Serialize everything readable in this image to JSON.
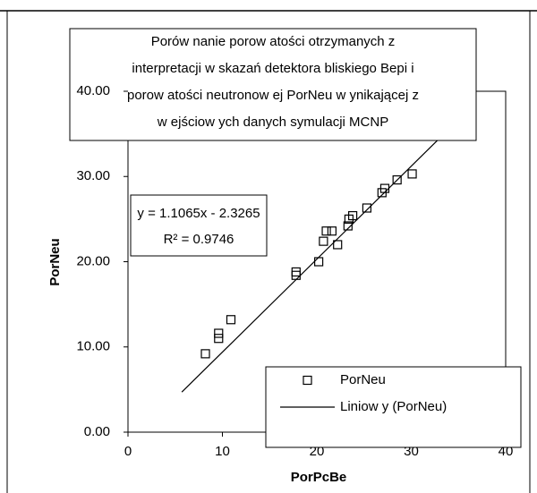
{
  "chart_data": {
    "type": "scatter",
    "title": [
      "Porów nanie porow atości otrzymanych z",
      "interpretacji w skazań detektora bliskiego Bepi i",
      "porow atości neutronow ej PorNeu w ynikającej z",
      "w ejściow ych danych symulacji MCNP"
    ],
    "x_label": "PorPcBe",
    "y_label": "PorNeu",
    "xlim": [
      0,
      40
    ],
    "xticks": [
      0,
      10,
      20,
      30,
      40
    ],
    "ylim": [
      0,
      40
    ],
    "yticks": [
      {
        "value": 0,
        "label": "0.00"
      },
      {
        "value": 10,
        "label": "10.00"
      },
      {
        "value": 20,
        "label": "20.00"
      },
      {
        "value": 30,
        "label": "30.00"
      },
      {
        "value": 40,
        "label": "40.00"
      }
    ],
    "series": [
      {
        "name": "PorNeu",
        "color": "#000000",
        "x": [
          8.2,
          9.6,
          9.6,
          10.9,
          17.8,
          17.8,
          20.2,
          20.7,
          21.0,
          21.6,
          22.2,
          23.3,
          23.4,
          23.8,
          25.3,
          26.9,
          27.2,
          28.5,
          30.1
        ],
        "values": [
          9.2,
          11.0,
          11.6,
          13.2,
          18.4,
          18.8,
          20.0,
          22.4,
          23.6,
          23.6,
          22.0,
          24.2,
          25.0,
          25.4,
          26.3,
          28.1,
          28.6,
          29.6,
          30.3
        ]
      },
      {
        "name": "Liniow y (PorNeu)",
        "color": "#000000",
        "x": [
          5.7,
          33.2
        ],
        "values": [
          4.7,
          34.7
        ]
      }
    ],
    "annotations": [
      "y = 1.1065x - 2.3265",
      "R² = 0.9746"
    ]
  }
}
